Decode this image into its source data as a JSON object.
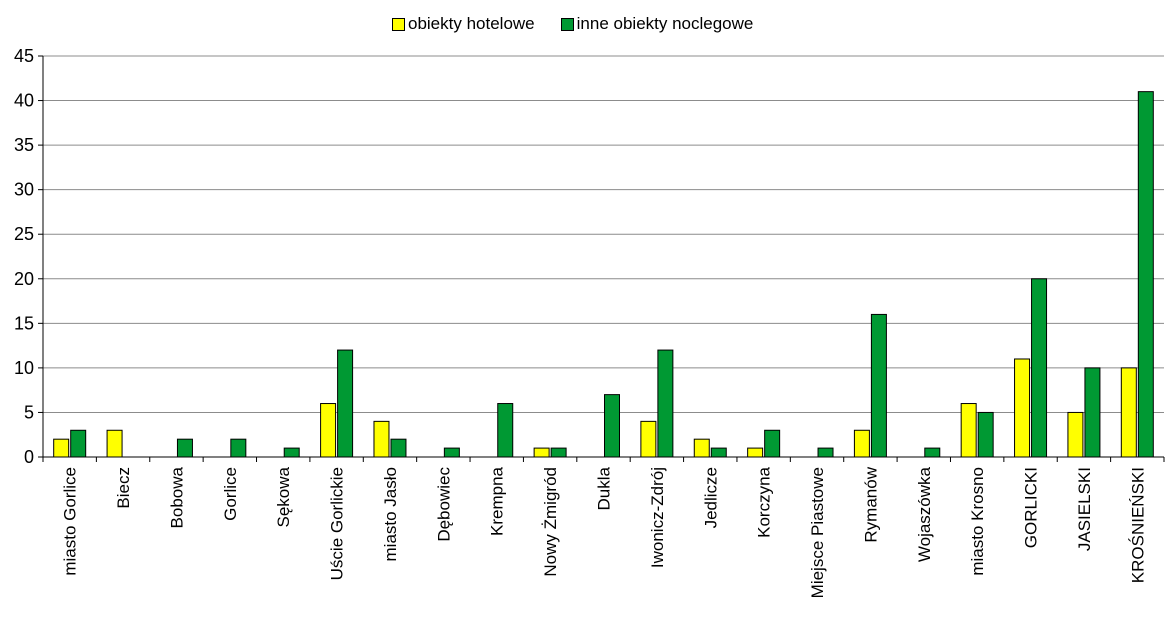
{
  "chart_data": {
    "type": "bar",
    "categories": [
      "miasto Gorlice",
      "Biecz",
      "Bobowa",
      "Gorlice",
      "Sękowa",
      "Uście Gorlickie",
      "miasto Jasło",
      "Dębowiec",
      "Krempna",
      "Nowy Żmigród",
      "Dukla",
      "Iwonicz-Zdrój",
      "Jedlicze",
      "Korczyna",
      "Miejsce Piastowe",
      "Rymanów",
      "Wojaszówka",
      "miasto Krosno",
      "GORLICKI",
      "JASIELSKI",
      "KROŚNIEŃSKI"
    ],
    "series": [
      {
        "name": "obiekty hotelowe",
        "color": "#ffff00",
        "values": [
          2,
          3,
          0,
          0,
          0,
          6,
          4,
          0,
          0,
          1,
          0,
          4,
          2,
          1,
          0,
          3,
          0,
          6,
          11,
          5,
          10
        ]
      },
      {
        "name": "inne obiekty noclegowe",
        "color": "#009933",
        "values": [
          3,
          0,
          2,
          2,
          1,
          12,
          2,
          1,
          6,
          1,
          7,
          12,
          1,
          3,
          1,
          16,
          1,
          5,
          20,
          10,
          41
        ]
      }
    ],
    "ylim": [
      0,
      45
    ],
    "yticks": [
      "0",
      "5",
      "10",
      "15",
      "20",
      "25",
      "30",
      "35",
      "40",
      "45"
    ],
    "grid": true,
    "legend_position": "top"
  }
}
